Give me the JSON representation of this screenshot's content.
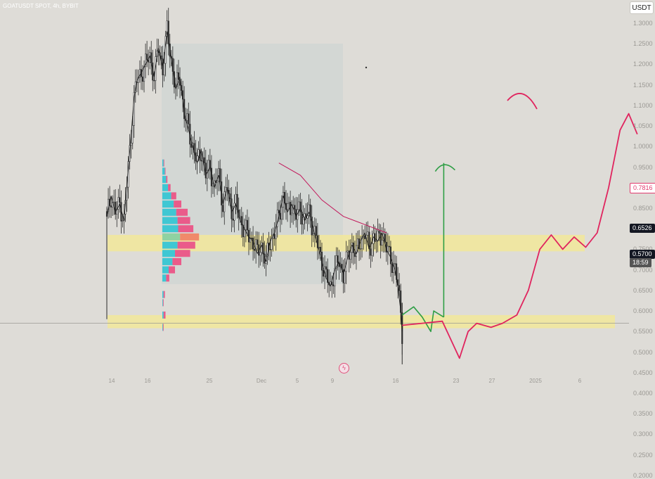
{
  "header": {
    "symbol_line": "GOATUSDT SPOT, 4h, BYBIT"
  },
  "currency_button": "USDT",
  "chart_data": {
    "type": "candlestick",
    "title": "GOATUSDT SPOT, 4h, BYBIT",
    "ylim": [
      0.2,
      1.33
    ],
    "y_ticks": [
      "1.3000",
      "1.2500",
      "1.2000",
      "1.1500",
      "1.1000",
      "1.0500",
      "1.0000",
      "0.9500",
      "0.9000",
      "0.8500",
      "0.8000",
      "0.7500",
      "0.7000",
      "0.6500",
      "0.6000",
      "0.5500",
      "0.5000",
      "0.4500",
      "0.4000",
      "0.3500",
      "0.3000",
      "0.2500",
      "0.2000"
    ],
    "x_ticks": [
      "14",
      "16",
      "25",
      "Dec",
      "5",
      "9",
      "16",
      "23",
      "27",
      "2025",
      "6"
    ],
    "price_tags": {
      "level": "0.7816",
      "last": "0.6526",
      "current": "0.5700",
      "countdown": "18:59"
    },
    "support_zones": [
      {
        "low": 0.558,
        "high": 0.59
      },
      {
        "low": 0.745,
        "high": 0.785
      }
    ],
    "close_path": [
      [
        0,
        0.83
      ],
      [
        3,
        0.88
      ],
      [
        6,
        0.84
      ],
      [
        9,
        0.86
      ],
      [
        12,
        0.82
      ],
      [
        15,
        0.95
      ],
      [
        17,
        1.03
      ],
      [
        19,
        1.12
      ],
      [
        21,
        1.16
      ],
      [
        24,
        1.18
      ],
      [
        27,
        1.2
      ],
      [
        30,
        1.22
      ],
      [
        33,
        1.17
      ],
      [
        36,
        1.24
      ],
      [
        39,
        1.19
      ],
      [
        42,
        1.28
      ],
      [
        45,
        1.21
      ],
      [
        48,
        1.14
      ],
      [
        51,
        1.17
      ],
      [
        54,
        1.08
      ],
      [
        57,
        1.04
      ],
      [
        60,
        1.0
      ],
      [
        63,
        0.96
      ],
      [
        66,
        0.99
      ],
      [
        69,
        0.93
      ],
      [
        72,
        0.95
      ],
      [
        75,
        0.9
      ],
      [
        78,
        0.93
      ],
      [
        81,
        0.86
      ],
      [
        84,
        0.9
      ],
      [
        87,
        0.84
      ],
      [
        90,
        0.86
      ],
      [
        93,
        0.82
      ],
      [
        96,
        0.8
      ],
      [
        99,
        0.78
      ],
      [
        102,
        0.77
      ],
      [
        105,
        0.74
      ],
      [
        108,
        0.76
      ],
      [
        111,
        0.72
      ],
      [
        114,
        0.77
      ],
      [
        117,
        0.79
      ],
      [
        120,
        0.83
      ],
      [
        123,
        0.88
      ],
      [
        126,
        0.84
      ],
      [
        129,
        0.86
      ],
      [
        132,
        0.83
      ],
      [
        135,
        0.85
      ],
      [
        138,
        0.82
      ],
      [
        141,
        0.84
      ],
      [
        144,
        0.8
      ],
      [
        147,
        0.76
      ],
      [
        150,
        0.72
      ],
      [
        153,
        0.68
      ],
      [
        156,
        0.66
      ],
      [
        159,
        0.7
      ],
      [
        162,
        0.72
      ],
      [
        165,
        0.69
      ],
      [
        168,
        0.73
      ],
      [
        171,
        0.76
      ],
      [
        174,
        0.74
      ],
      [
        177,
        0.77
      ],
      [
        180,
        0.79
      ],
      [
        183,
        0.75
      ],
      [
        186,
        0.78
      ],
      [
        189,
        0.77
      ],
      [
        192,
        0.79
      ],
      [
        195,
        0.75
      ],
      [
        198,
        0.73
      ],
      [
        201,
        0.7
      ],
      [
        203,
        0.66
      ],
      [
        205,
        0.6
      ],
      [
        206,
        0.55
      ]
    ],
    "volume_profile": [
      {
        "price": 0.96,
        "buy": 2,
        "sell": 1
      },
      {
        "price": 0.94,
        "buy": 4,
        "sell": 1
      },
      {
        "price": 0.92,
        "buy": 6,
        "sell": 2
      },
      {
        "price": 0.9,
        "buy": 9,
        "sell": 4
      },
      {
        "price": 0.88,
        "buy": 14,
        "sell": 8
      },
      {
        "price": 0.86,
        "buy": 18,
        "sell": 12
      },
      {
        "price": 0.84,
        "buy": 22,
        "sell": 18
      },
      {
        "price": 0.82,
        "buy": 24,
        "sell": 20
      },
      {
        "price": 0.8,
        "buy": 25,
        "sell": 24
      },
      {
        "price": 0.78,
        "buy": 28,
        "sell": 30
      },
      {
        "price": 0.76,
        "buy": 24,
        "sell": 28
      },
      {
        "price": 0.74,
        "buy": 20,
        "sell": 24
      },
      {
        "price": 0.72,
        "buy": 16,
        "sell": 14
      },
      {
        "price": 0.7,
        "buy": 10,
        "sell": 10
      },
      {
        "price": 0.68,
        "buy": 6,
        "sell": 5
      },
      {
        "price": 0.64,
        "buy": 2,
        "sell": 2
      },
      {
        "price": 0.62,
        "buy": 1,
        "sell": 1
      },
      {
        "price": 0.59,
        "buy": 2,
        "sell": 3
      },
      {
        "price": 0.56,
        "buy": 1,
        "sell": 1
      }
    ],
    "moving_average": [
      [
        120,
        0.96
      ],
      [
        135,
        0.93
      ],
      [
        150,
        0.87
      ],
      [
        165,
        0.83
      ],
      [
        180,
        0.81
      ],
      [
        195,
        0.79
      ]
    ],
    "green_projection": [
      [
        206,
        0.59
      ],
      [
        214,
        0.61
      ],
      [
        220,
        0.585
      ],
      [
        226,
        0.55
      ],
      [
        228,
        0.6
      ],
      [
        235,
        0.585
      ]
    ],
    "green_arrow": {
      "x": 235,
      "from": 0.585,
      "to": 0.96
    },
    "red_projection": [
      [
        206,
        0.565
      ],
      [
        220,
        0.57
      ],
      [
        234,
        0.575
      ],
      [
        240,
        0.53
      ],
      [
        246,
        0.485
      ],
      [
        252,
        0.55
      ],
      [
        258,
        0.57
      ],
      [
        268,
        0.56
      ],
      [
        276,
        0.57
      ],
      [
        286,
        0.59
      ],
      [
        294,
        0.65
      ],
      [
        302,
        0.75
      ],
      [
        310,
        0.785
      ],
      [
        318,
        0.75
      ],
      [
        326,
        0.78
      ],
      [
        334,
        0.755
      ],
      [
        342,
        0.79
      ],
      [
        350,
        0.9
      ],
      [
        358,
        1.04
      ],
      [
        364,
        1.08
      ],
      [
        370,
        1.03
      ]
    ]
  }
}
